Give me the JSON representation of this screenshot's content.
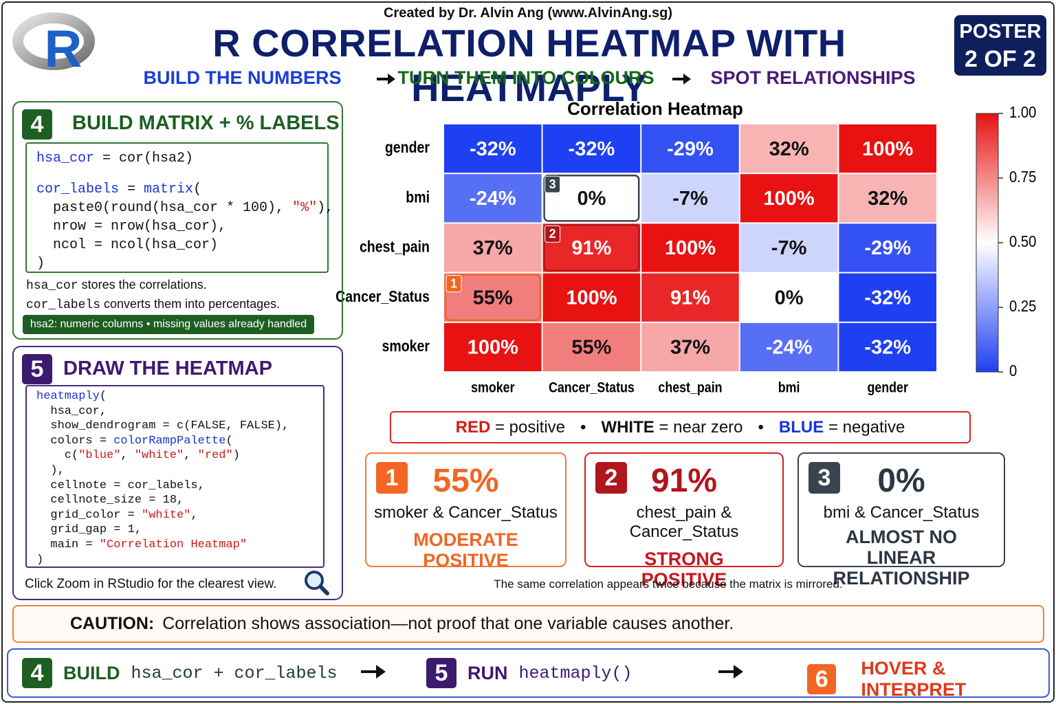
{
  "header": {
    "logo": "R",
    "credit": "Created by Dr. Alvin Ang (www.AlvinAng.sg)",
    "title": "R CORRELATION HEATMAP WITH HEATMAPLY",
    "steps": [
      "BUILD THE NUMBERS",
      "TURN THEM INTO COLOURS",
      "SPOT RELATIONSHIPS"
    ],
    "badge": [
      "POSTER",
      "2 OF 2"
    ]
  },
  "panel4": {
    "number": "4",
    "title": "BUILD MATRIX + % LABELS",
    "code": [
      [
        "hsa_cor",
        " = cor(hsa2)"
      ],
      [
        "cor_labels",
        " = ",
        "matrix",
        "("
      ],
      [
        "  paste0(round(hsa_cor * 100), ",
        "\"%\"",
        "),"
      ],
      [
        "  nrow = nrow(hsa_cor),"
      ],
      [
        "  ncol = ncol(hsa_cor)"
      ],
      [
        ")"
      ]
    ],
    "notes": [
      [
        "hsa_cor",
        " stores the correlations."
      ],
      [
        "cor_labels",
        " converts them into percentages."
      ]
    ],
    "tag": "hsa2: numeric columns • missing values already handled"
  },
  "panel5": {
    "number": "5",
    "title": "DRAW THE HEATMAP",
    "code": [
      [
        "heatmaply",
        "("
      ],
      [
        "  hsa_cor,"
      ],
      [
        "  show_dendrogram = c(FALSE, FALSE),"
      ],
      [
        "  colors = ",
        "colorRampPalette",
        "("
      ],
      [
        "    c(",
        "\"blue\"",
        ", ",
        "\"white\"",
        ", ",
        "\"red\"",
        ")"
      ],
      [
        "  ),"
      ],
      [
        "  cellnote = cor_labels,"
      ],
      [
        "  cellnote_size = 18,"
      ],
      [
        "  grid_color = ",
        "\"white\"",
        ","
      ],
      [
        "  grid_gap = 1,"
      ],
      [
        "  main = ",
        "\"Correlation Heatmap\""
      ],
      [
        ")"
      ]
    ],
    "note": "Click Zoom in RStudio for the clearest view."
  },
  "chart_data": {
    "type": "heatmap",
    "title": "Correlation Heatmap",
    "x_categories": [
      "smoker",
      "Cancer_Status",
      "chest_pain",
      "bmi",
      "gender"
    ],
    "y_categories": [
      "gender",
      "bmi",
      "chest_pain",
      "Cancer_Status",
      "smoker"
    ],
    "values": [
      [
        -0.32,
        -0.32,
        -0.29,
        0.32,
        1.0
      ],
      [
        -0.24,
        0.0,
        -0.07,
        1.0,
        0.32
      ],
      [
        0.37,
        0.91,
        1.0,
        -0.07,
        -0.29
      ],
      [
        0.55,
        1.0,
        0.91,
        0.0,
        -0.32
      ],
      [
        1.0,
        0.55,
        0.37,
        -0.24,
        -0.32
      ]
    ],
    "value_labels": [
      [
        "-32%",
        "-32%",
        "-29%",
        "32%",
        "100%"
      ],
      [
        "-24%",
        "0%",
        "-7%",
        "100%",
        "32%"
      ],
      [
        "37%",
        "91%",
        "100%",
        "-7%",
        "-29%"
      ],
      [
        "55%",
        "100%",
        "91%",
        "0%",
        "-32%"
      ],
      [
        "100%",
        "55%",
        "37%",
        "-24%",
        "-32%"
      ]
    ],
    "colorscale": [
      "#1f3ff2",
      "#ffffff",
      "#e81212"
    ],
    "zlim": [
      0,
      1
    ],
    "zticks": [
      0,
      0.25,
      {
        "value": 0.5,
        "label": "0.50"
      },
      0.75,
      {
        "value": 1,
        "label": "1.00"
      }
    ]
  },
  "legend": {
    "items": [
      {
        "key": "RED",
        "text": "= positive"
      },
      {
        "key": "WHITE",
        "text": "= near zero"
      },
      {
        "key": "BLUE",
        "text": "= negative"
      }
    ],
    "separator": "•"
  },
  "cards": [
    {
      "number": "1",
      "value": "55%",
      "pair": "smoker & Cancer_Status",
      "verdict": "MODERATE POSITIVE"
    },
    {
      "number": "2",
      "value": "91%",
      "pair": "chest_pain & Cancer_Status",
      "verdict": "STRONG POSITIVE"
    },
    {
      "number": "3",
      "value": "0%",
      "pair": "bmi & Cancer_Status",
      "verdict": "ALMOST NO LINEAR RELATIONSHIP"
    }
  ],
  "footnote": "The same correlation appears twice because the matrix is mirrored.",
  "caution": {
    "label": "CAUTION:",
    "text": "Correlation shows association—not proof that one variable causes another."
  },
  "bottom": [
    {
      "number": "4",
      "verb": "BUILD",
      "code": "hsa_cor + cor_labels"
    },
    {
      "number": "5",
      "verb": "RUN",
      "code": "heatmaply()"
    },
    {
      "number": "6",
      "verb": "HOVER & INTERPRET"
    }
  ]
}
